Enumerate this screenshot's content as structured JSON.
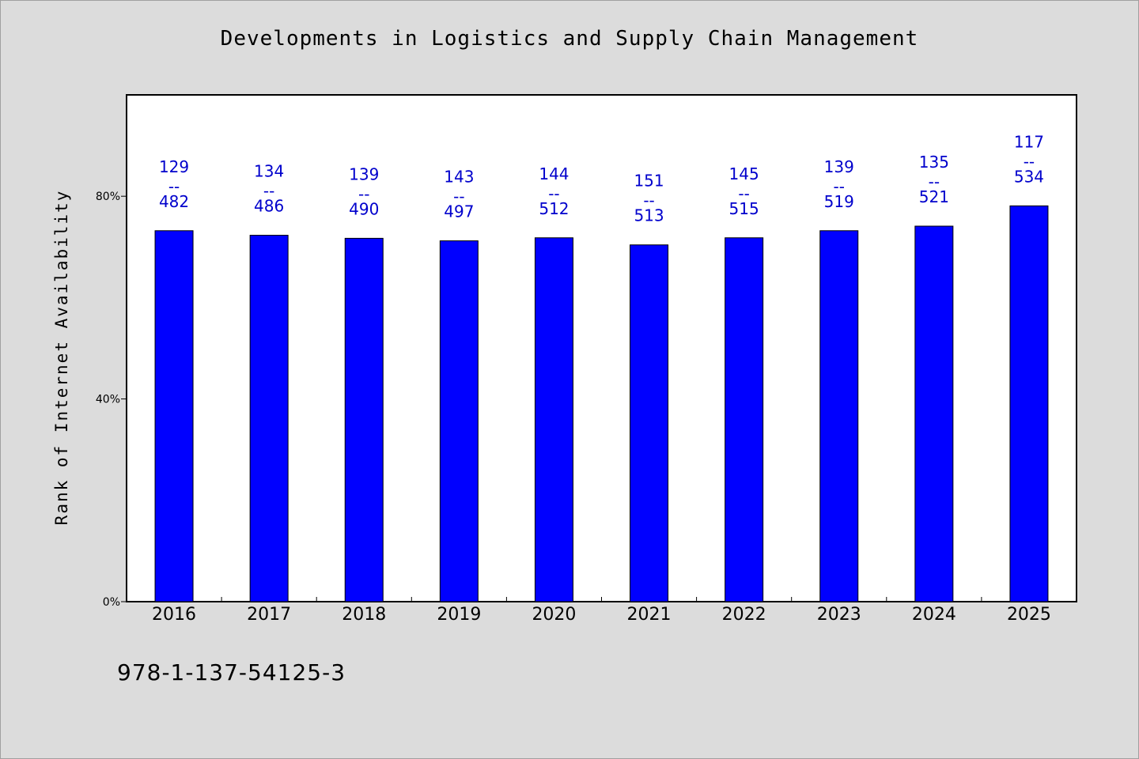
{
  "chart_data": {
    "type": "bar",
    "title": "Developments in Logistics and Supply Chain Management",
    "ylabel": "Rank of Internet Availability",
    "xlabel": "",
    "categories": [
      "2016",
      "2017",
      "2018",
      "2019",
      "2020",
      "2021",
      "2022",
      "2023",
      "2024",
      "2025"
    ],
    "values": [
      73.2,
      72.3,
      71.7,
      71.2,
      71.8,
      70.4,
      71.8,
      73.2,
      74.1,
      78.1
    ],
    "value_unit": "%",
    "bar_labels": [
      {
        "top": "129",
        "mid": "--",
        "bottom": "482"
      },
      {
        "top": "134",
        "mid": "--",
        "bottom": "486"
      },
      {
        "top": "139",
        "mid": "--",
        "bottom": "490"
      },
      {
        "top": "143",
        "mid": "--",
        "bottom": "497"
      },
      {
        "top": "144",
        "mid": "--",
        "bottom": "512"
      },
      {
        "top": "151",
        "mid": "--",
        "bottom": "513"
      },
      {
        "top": "145",
        "mid": "--",
        "bottom": "515"
      },
      {
        "top": "139",
        "mid": "--",
        "bottom": "519"
      },
      {
        "top": "135",
        "mid": "--",
        "bottom": "521"
      },
      {
        "top": "117",
        "mid": "--",
        "bottom": "534"
      }
    ],
    "yticks": [
      {
        "value": 0,
        "label": "0%"
      },
      {
        "value": 40,
        "label": "40%"
      },
      {
        "value": 80,
        "label": "80%"
      }
    ],
    "ylim": [
      0,
      100
    ],
    "grid": false,
    "legend": "none",
    "colors": {
      "bar": "#0000ff",
      "bar_label": "#0000cc",
      "plot_background": "#ffffff",
      "page_background": "#dcdcdc"
    }
  },
  "footer": {
    "code": "978-1-137-54125-3"
  }
}
